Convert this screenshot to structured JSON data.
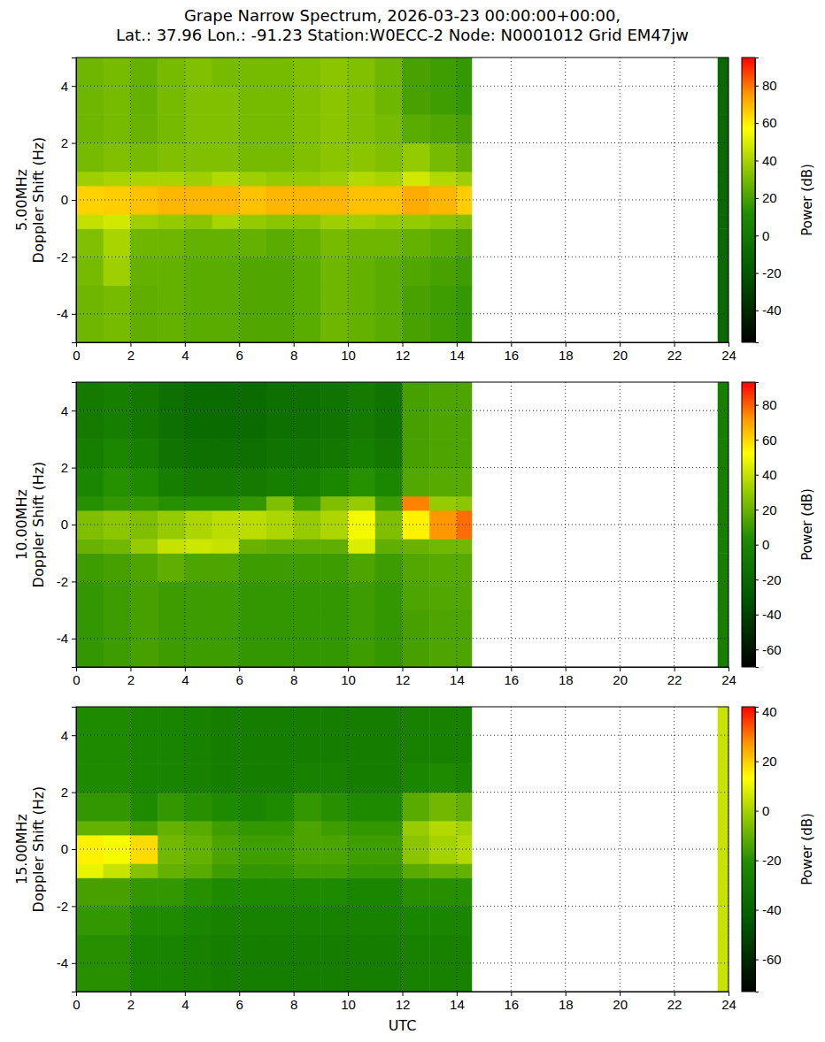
{
  "chart_data": [
    {
      "type": "heatmap",
      "title": "Grape Narrow Spectrum, 2026-03-23 00:00:00+00:00,\nLat.: 37.96 Lon.: -91.23 Station:W0ECC-2 Node: N0001012 Grid EM47jw",
      "ylabel": "5.00MHz\nDoppler Shift (Hz)",
      "xlim": [
        0,
        24
      ],
      "ylim": [
        -5,
        5
      ],
      "xticks": [
        0,
        2,
        4,
        6,
        8,
        10,
        12,
        14,
        16,
        18,
        20,
        22,
        24
      ],
      "yticks": [
        -4,
        -2,
        0,
        2,
        4
      ],
      "grid": true,
      "x_edges": [
        0,
        1,
        2,
        3,
        4,
        5,
        6,
        7,
        8,
        9,
        10,
        11,
        12,
        13,
        14,
        14.55,
        23.6,
        24
      ],
      "y_edges": [
        -5,
        -4,
        -3,
        -2,
        -1,
        -0.5,
        0.5,
        1,
        2,
        3,
        4,
        5
      ],
      "values": [
        [
          28,
          28,
          30,
          32,
          45,
          65,
          38,
          30,
          28,
          28,
          28
        ],
        [
          30,
          30,
          38,
          40,
          48,
          66,
          40,
          32,
          30,
          30,
          30
        ],
        [
          25,
          25,
          26,
          28,
          38,
          68,
          40,
          30,
          27,
          26,
          26
        ],
        [
          26,
          26,
          26,
          28,
          36,
          70,
          40,
          32,
          30,
          30,
          30
        ],
        [
          24,
          24,
          24,
          26,
          34,
          70,
          38,
          32,
          32,
          32,
          32
        ],
        [
          24,
          24,
          24,
          26,
          40,
          70,
          42,
          32,
          32,
          32,
          30
        ],
        [
          22,
          22,
          22,
          26,
          36,
          68,
          38,
          30,
          30,
          30,
          30
        ],
        [
          22,
          22,
          22,
          24,
          34,
          70,
          36,
          30,
          30,
          30,
          30
        ],
        [
          24,
          24,
          24,
          26,
          34,
          70,
          36,
          32,
          32,
          32,
          32
        ],
        [
          28,
          28,
          28,
          30,
          38,
          70,
          38,
          34,
          34,
          34,
          34
        ],
        [
          26,
          26,
          26,
          28,
          38,
          68,
          42,
          34,
          32,
          32,
          32
        ],
        [
          24,
          24,
          24,
          28,
          36,
          68,
          40,
          32,
          30,
          28,
          28
        ],
        [
          20,
          20,
          22,
          26,
          36,
          72,
          48,
          36,
          24,
          20,
          20
        ],
        [
          18,
          18,
          20,
          24,
          34,
          70,
          42,
          30,
          22,
          18,
          18
        ],
        [
          16,
          16,
          18,
          22,
          32,
          66,
          38,
          26,
          20,
          16,
          16
        ],
        null,
        [
          -10,
          -10,
          -10,
          -10,
          -10,
          -10,
          -10,
          -10,
          -10,
          -10,
          -10
        ]
      ],
      "colorbar_label": "Power (dB)",
      "colorbar_range": [
        -57,
        95
      ],
      "colorbar_ticks": [
        -40,
        -20,
        0,
        20,
        40,
        60,
        80
      ]
    },
    {
      "type": "heatmap",
      "ylabel": "10.00MHz\nDoppler Shift (Hz)",
      "xlim": [
        0,
        24
      ],
      "ylim": [
        -5,
        5
      ],
      "xticks": [
        0,
        2,
        4,
        6,
        8,
        10,
        12,
        14,
        16,
        18,
        20,
        22,
        24
      ],
      "yticks": [
        -4,
        -2,
        0,
        2,
        4
      ],
      "grid": true,
      "x_edges": [
        0,
        1,
        2,
        3,
        4,
        5,
        6,
        7,
        8,
        9,
        10,
        11,
        12,
        13,
        14,
        14.55,
        23.6,
        24
      ],
      "y_edges": [
        -5,
        -4,
        -3,
        -2,
        -1,
        -0.5,
        0.5,
        1,
        2,
        3,
        4,
        5
      ],
      "values": [
        [
          8,
          8,
          8,
          10,
          20,
          25,
          5,
          0,
          -5,
          -8,
          -8
        ],
        [
          10,
          10,
          10,
          12,
          22,
          28,
          8,
          5,
          0,
          -5,
          -5
        ],
        [
          12,
          12,
          12,
          14,
          30,
          25,
          8,
          2,
          -5,
          -10,
          -10
        ],
        [
          10,
          10,
          10,
          18,
          40,
          30,
          5,
          -5,
          -12,
          -15,
          -15
        ],
        [
          10,
          10,
          10,
          14,
          42,
          35,
          5,
          -8,
          -15,
          -18,
          -18
        ],
        [
          10,
          10,
          10,
          14,
          40,
          38,
          5,
          -8,
          -15,
          -18,
          -18
        ],
        [
          8,
          8,
          8,
          10,
          20,
          38,
          8,
          -8,
          -15,
          -18,
          -18
        ],
        [
          8,
          8,
          8,
          10,
          18,
          35,
          25,
          -5,
          -12,
          -15,
          -15
        ],
        [
          8,
          8,
          8,
          10,
          18,
          30,
          10,
          -5,
          -12,
          -15,
          -15
        ],
        [
          8,
          8,
          8,
          10,
          18,
          35,
          25,
          0,
          -10,
          -12,
          -12
        ],
        [
          10,
          10,
          10,
          14,
          45,
          50,
          30,
          5,
          -5,
          -8,
          -8
        ],
        [
          8,
          8,
          8,
          10,
          18,
          25,
          10,
          0,
          -10,
          -12,
          -12
        ],
        [
          12,
          12,
          14,
          15,
          20,
          55,
          75,
          15,
          12,
          12,
          12
        ],
        [
          14,
          14,
          15,
          16,
          22,
          72,
          30,
          16,
          14,
          14,
          14
        ],
        [
          14,
          14,
          15,
          16,
          22,
          78,
          28,
          16,
          14,
          14,
          14
        ],
        null,
        [
          -5,
          -5,
          -5,
          -5,
          -5,
          -5,
          -5,
          -5,
          -5,
          -5,
          -5
        ]
      ],
      "colorbar_label": "Power (dB)",
      "colorbar_range": [
        -70,
        93
      ],
      "colorbar_ticks": [
        -60,
        -40,
        -20,
        0,
        20,
        40,
        60,
        80
      ]
    },
    {
      "type": "heatmap",
      "ylabel": "15.00MHz\nDoppler Shift (Hz)",
      "xlabel": "UTC",
      "xlim": [
        0,
        24
      ],
      "ylim": [
        -5,
        5
      ],
      "xticks": [
        0,
        2,
        4,
        6,
        8,
        10,
        12,
        14,
        16,
        18,
        20,
        22,
        24
      ],
      "yticks": [
        -4,
        -2,
        0,
        2,
        4
      ],
      "grid": true,
      "x_edges": [
        0,
        1,
        2,
        3,
        4,
        5,
        6,
        7,
        8,
        9,
        10,
        11,
        12,
        13,
        14,
        14.55,
        23.6,
        24
      ],
      "y_edges": [
        -5,
        -4,
        -3,
        -2,
        -1,
        -0.5,
        0.5,
        1,
        2,
        3,
        4,
        5
      ],
      "values": [
        [
          -20,
          -20,
          -18,
          -15,
          10,
          15,
          -10,
          -18,
          -22,
          -22,
          -22
        ],
        [
          -20,
          -20,
          -18,
          -15,
          5,
          12,
          -10,
          -18,
          -22,
          -22,
          -22
        ],
        [
          -25,
          -25,
          -22,
          -18,
          -5,
          18,
          -15,
          -22,
          -25,
          -25,
          -25
        ],
        [
          -25,
          -25,
          -22,
          -18,
          -10,
          -8,
          -10,
          -18,
          -25,
          -25,
          -25
        ],
        [
          -26,
          -26,
          -24,
          -20,
          -12,
          -10,
          -12,
          -20,
          -26,
          -26,
          -26
        ],
        [
          -28,
          -28,
          -26,
          -22,
          -16,
          -14,
          -16,
          -22,
          -28,
          -28,
          -28
        ],
        [
          -28,
          -28,
          -26,
          -22,
          -18,
          -16,
          -18,
          -24,
          -28,
          -28,
          -28
        ],
        [
          -28,
          -28,
          -26,
          -22,
          -18,
          -16,
          -18,
          -22,
          -28,
          -28,
          -28
        ],
        [
          -28,
          -28,
          -26,
          -22,
          -16,
          -14,
          -14,
          -18,
          -26,
          -28,
          -28
        ],
        [
          -28,
          -28,
          -26,
          -22,
          -16,
          -14,
          -16,
          -20,
          -26,
          -28,
          -28
        ],
        [
          -28,
          -28,
          -26,
          -24,
          -18,
          -16,
          -18,
          -22,
          -28,
          -28,
          -28
        ],
        [
          -28,
          -28,
          -26,
          -24,
          -18,
          -16,
          -18,
          -22,
          -28,
          -28,
          -28
        ],
        [
          -26,
          -26,
          -24,
          -20,
          -12,
          -4,
          -2,
          -12,
          -24,
          -26,
          -26
        ],
        [
          -26,
          -26,
          -24,
          -20,
          -10,
          0,
          2,
          -8,
          -22,
          -26,
          -26
        ],
        [
          -26,
          -26,
          -24,
          -20,
          -10,
          2,
          0,
          -10,
          -24,
          -26,
          -26
        ],
        null,
        [
          5,
          5,
          5,
          5,
          5,
          5,
          5,
          5,
          5,
          5,
          5
        ]
      ],
      "colorbar_label": "Power (dB)",
      "colorbar_range": [
        -73,
        42
      ],
      "colorbar_ticks": [
        -60,
        -40,
        -20,
        0,
        20,
        40
      ]
    }
  ]
}
